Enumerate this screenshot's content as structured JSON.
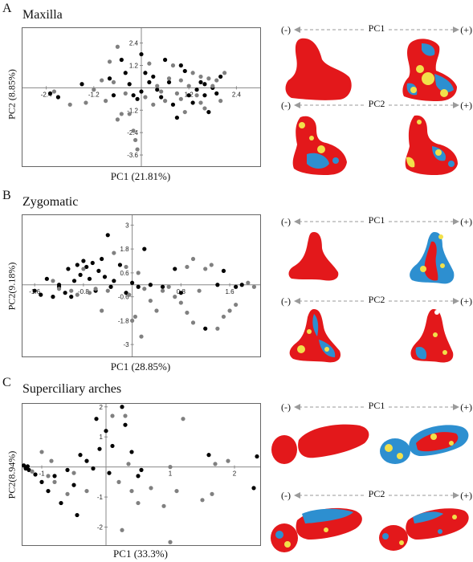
{
  "colors": {
    "black_points": "#000000",
    "gray_points": "#808080",
    "heat_red": "#e3181b",
    "heat_yellow": "#f2e04a",
    "heat_blue": "#2d8fd0",
    "arrow": "#9a9a9a"
  },
  "panels": [
    {
      "letter": "A",
      "title": "Maxilla",
      "arrows": [
        {
          "minus": "(-)",
          "label": "PC1",
          "plus": "(+)"
        },
        {
          "minus": "(-)",
          "label": "PC2",
          "plus": "(+)"
        }
      ]
    },
    {
      "letter": "B",
      "title": "Zygomatic",
      "arrows": [
        {
          "minus": "(-)",
          "label": "PC1",
          "plus": "(+)"
        },
        {
          "minus": "(-)",
          "label": "PC2",
          "plus": "(+)"
        }
      ]
    },
    {
      "letter": "C",
      "title": "Superciliary arches",
      "arrows": [
        {
          "minus": "(-)",
          "label": "PC1",
          "plus": "(+)"
        },
        {
          "minus": "(-)",
          "label": "PC2",
          "plus": "(+)"
        }
      ]
    }
  ],
  "chart_data": [
    {
      "type": "scatter",
      "title": "",
      "xlabel": "PC1 (21.81%)",
      "ylabel": "PC2 (8.85%)",
      "xlim": [
        -3.0,
        3.0
      ],
      "ylim": [
        -4.2,
        3.2
      ],
      "x_ticks": [
        {
          "v": -2.4,
          "t": "-2.4"
        },
        {
          "v": -1.2,
          "t": "-1.2"
        },
        {
          "v": 1.2,
          "t": "1.2"
        },
        {
          "v": 2.4,
          "t": "2.4"
        }
      ],
      "y_ticks": [
        {
          "v": 2.4,
          "t": "2.4"
        },
        {
          "v": 1.2,
          "t": "1.2"
        },
        {
          "v": -1.2,
          "t": "-1.2"
        },
        {
          "v": -2.4,
          "t": "-2.4"
        },
        {
          "v": -3.6,
          "t": "-3.6"
        }
      ],
      "series": [
        {
          "color": "#000000",
          "points": [
            [
              -2.3,
              -0.3
            ],
            [
              -2.1,
              -0.5
            ],
            [
              -1.5,
              0.2
            ],
            [
              -0.7,
              -0.4
            ],
            [
              -0.5,
              1.5
            ],
            [
              -0.4,
              0.8
            ],
            [
              -0.3,
              0.2
            ],
            [
              -0.2,
              -0.4
            ],
            [
              -0.1,
              -0.6
            ],
            [
              0.0,
              -0.2
            ],
            [
              0.1,
              0.8
            ],
            [
              0.2,
              0.3
            ],
            [
              0.3,
              0.6
            ],
            [
              0.4,
              -0.1
            ],
            [
              0.5,
              -0.5
            ],
            [
              0.6,
              1.5
            ],
            [
              0.7,
              0.3
            ],
            [
              0.8,
              -0.9
            ],
            [
              0.9,
              -1.6
            ],
            [
              1.0,
              1.2
            ],
            [
              1.1,
              0.9
            ],
            [
              1.3,
              -0.8
            ],
            [
              1.4,
              -0.1
            ],
            [
              1.5,
              0.3
            ],
            [
              1.6,
              -0.4
            ],
            [
              1.7,
              -1.3
            ],
            [
              1.8,
              0.0
            ],
            [
              1.9,
              -0.3
            ],
            [
              2.0,
              0.6
            ],
            [
              1.2,
              -0.4
            ],
            [
              0.0,
              1.8
            ],
            [
              -0.8,
              0.5
            ],
            [
              1.6,
              0.2
            ]
          ]
        },
        {
          "color": "#808080",
          "points": [
            [
              -2.2,
              -0.2
            ],
            [
              -1.8,
              -0.9
            ],
            [
              -1.4,
              -0.8
            ],
            [
              -1.2,
              -0.1
            ],
            [
              -1.0,
              0.4
            ],
            [
              -0.9,
              -0.7
            ],
            [
              -0.8,
              1.4
            ],
            [
              -0.7,
              0.3
            ],
            [
              -0.6,
              -1.7
            ],
            [
              -0.5,
              -1.4
            ],
            [
              -0.4,
              -0.3
            ],
            [
              -0.3,
              -1.4
            ],
            [
              -0.2,
              -2.3
            ],
            [
              -0.15,
              -2.8
            ],
            [
              -0.1,
              -3.3
            ],
            [
              0.1,
              -0.5
            ],
            [
              0.3,
              -0.9
            ],
            [
              0.4,
              0.1
            ],
            [
              0.5,
              -0.2
            ],
            [
              0.6,
              -0.7
            ],
            [
              0.7,
              0.5
            ],
            [
              0.8,
              1.2
            ],
            [
              0.9,
              -0.3
            ],
            [
              1.0,
              -0.6
            ],
            [
              1.1,
              -1.3
            ],
            [
              1.2,
              0.1
            ],
            [
              1.3,
              0.8
            ],
            [
              1.4,
              -0.4
            ],
            [
              1.5,
              -0.8
            ],
            [
              1.6,
              -1.1
            ],
            [
              1.7,
              0.5
            ],
            [
              1.8,
              0.1
            ],
            [
              1.9,
              0.4
            ],
            [
              2.0,
              -0.7
            ],
            [
              2.1,
              0.8
            ],
            [
              -0.6,
              2.2
            ],
            [
              0.2,
              1.3
            ],
            [
              1.0,
              0.4
            ],
            [
              1.5,
              0.6
            ]
          ]
        }
      ]
    },
    {
      "type": "scatter",
      "title": "",
      "xlabel": "PC1 (28.85%)",
      "ylabel": "PC2(9.18%)",
      "xlim": [
        -1.8,
        2.1
      ],
      "ylim": [
        -3.6,
        3.5
      ],
      "x_ticks": [
        {
          "v": -1.6,
          "t": "-1.6"
        },
        {
          "v": -0.8,
          "t": "-0.8"
        },
        {
          "v": 0.8,
          "t": "0.8"
        },
        {
          "v": 1.6,
          "t": "1.6"
        }
      ],
      "y_ticks": [
        {
          "v": 3,
          "t": "3"
        },
        {
          "v": 1.8,
          "t": "1.8"
        },
        {
          "v": 0.6,
          "t": "0.6"
        },
        {
          "v": -0.6,
          "t": "-0.6"
        },
        {
          "v": -1.8,
          "t": "-1.8"
        },
        {
          "v": -3,
          "t": "-3"
        }
      ],
      "series": [
        {
          "color": "#000000",
          "points": [
            [
              -1.6,
              -0.3
            ],
            [
              -1.5,
              -0.5
            ],
            [
              -1.4,
              0.3
            ],
            [
              -1.3,
              -0.6
            ],
            [
              -1.2,
              -0.1
            ],
            [
              -1.1,
              -0.4
            ],
            [
              -1.05,
              0.8
            ],
            [
              -1.0,
              -0.6
            ],
            [
              -0.95,
              0.2
            ],
            [
              -0.9,
              1.0
            ],
            [
              -0.85,
              0.5
            ],
            [
              -0.8,
              1.2
            ],
            [
              -0.75,
              0.9
            ],
            [
              -0.7,
              0.3
            ],
            [
              -0.65,
              1.1
            ],
            [
              -0.6,
              -0.3
            ],
            [
              -0.55,
              0.7
            ],
            [
              -0.5,
              1.3
            ],
            [
              -0.45,
              0.4
            ],
            [
              -0.4,
              2.5
            ],
            [
              -0.35,
              -0.1
            ],
            [
              -0.3,
              0.2
            ],
            [
              -0.2,
              1.0
            ],
            [
              -0.1,
              -0.4
            ],
            [
              0.0,
              0.1
            ],
            [
              0.1,
              -0.1
            ],
            [
              0.2,
              1.8
            ],
            [
              0.3,
              0.0
            ],
            [
              0.5,
              -0.1
            ],
            [
              0.7,
              0.8
            ],
            [
              0.8,
              -0.4
            ],
            [
              1.2,
              -2.2
            ],
            [
              1.4,
              0.0
            ],
            [
              1.5,
              0.7
            ],
            [
              1.7,
              -0.1
            ],
            [
              1.8,
              0.0
            ],
            [
              -1.2,
              0.0
            ]
          ]
        },
        {
          "color": "#808080",
          "points": [
            [
              -1.3,
              0.2
            ],
            [
              -1.2,
              -0.2
            ],
            [
              -1.0,
              -0.3
            ],
            [
              -0.9,
              -0.5
            ],
            [
              -0.8,
              0.8
            ],
            [
              -0.7,
              -0.4
            ],
            [
              -0.5,
              -1.3
            ],
            [
              -0.4,
              -0.3
            ],
            [
              -0.3,
              1.6
            ],
            [
              -0.1,
              0.9
            ],
            [
              -0.05,
              -0.5
            ],
            [
              0.0,
              -1.8
            ],
            [
              0.05,
              -1.6
            ],
            [
              0.1,
              0.6
            ],
            [
              0.2,
              -0.2
            ],
            [
              0.3,
              -0.8
            ],
            [
              0.4,
              -1.3
            ],
            [
              0.5,
              -0.3
            ],
            [
              0.6,
              -0.1
            ],
            [
              0.7,
              -0.6
            ],
            [
              0.8,
              -0.9
            ],
            [
              0.9,
              -1.4
            ],
            [
              1.0,
              1.3
            ],
            [
              1.1,
              -0.3
            ],
            [
              1.2,
              0.8
            ],
            [
              1.3,
              1.0
            ],
            [
              1.4,
              -2.2
            ],
            [
              1.5,
              -1.6
            ],
            [
              1.6,
              -1.3
            ],
            [
              1.7,
              -1.0
            ],
            [
              1.9,
              0.1
            ],
            [
              2.0,
              -0.1
            ],
            [
              0.15,
              -2.6
            ],
            [
              1.0,
              -1.9
            ],
            [
              0.9,
              0.9
            ],
            [
              -0.6,
              -0.2
            ]
          ]
        }
      ]
    },
    {
      "type": "scatter",
      "title": "",
      "xlabel": "PC1 (33.3%)",
      "ylabel": "PC2(8.94%)",
      "xlim": [
        -1.3,
        2.4
      ],
      "ylim": [
        -2.6,
        2.1
      ],
      "x_ticks": [
        {
          "v": -1,
          "t": "-1"
        },
        {
          "v": 1,
          "t": "1"
        },
        {
          "v": 2,
          "t": "2"
        }
      ],
      "y_ticks": [
        {
          "v": 2,
          "t": "2"
        },
        {
          "v": 1,
          "t": "1"
        },
        {
          "v": -1,
          "t": "-1"
        },
        {
          "v": -2,
          "t": "-2"
        }
      ],
      "series": [
        {
          "color": "#000000",
          "points": [
            [
              -1.28,
              0.05
            ],
            [
              -1.25,
              -0.05
            ],
            [
              -1.22,
              0.02
            ],
            [
              -1.2,
              -0.1
            ],
            [
              -1.1,
              -0.25
            ],
            [
              -1.0,
              -0.5
            ],
            [
              -0.9,
              -0.8
            ],
            [
              -0.8,
              -0.3
            ],
            [
              -0.7,
              -1.2
            ],
            [
              -0.6,
              -0.1
            ],
            [
              -0.5,
              -0.6
            ],
            [
              -0.45,
              -1.6
            ],
            [
              -0.4,
              0.4
            ],
            [
              -0.3,
              0.2
            ],
            [
              -0.2,
              -0.05
            ],
            [
              -0.15,
              1.6
            ],
            [
              -0.1,
              0.6
            ],
            [
              0.0,
              1.2
            ],
            [
              0.05,
              -0.2
            ],
            [
              0.1,
              0.7
            ],
            [
              0.25,
              2.0
            ],
            [
              0.3,
              1.4
            ],
            [
              0.4,
              0.5
            ],
            [
              0.5,
              -0.3
            ],
            [
              1.6,
              0.4
            ],
            [
              2.3,
              -0.7
            ],
            [
              2.35,
              0.35
            ],
            [
              0.55,
              -0.1
            ]
          ]
        },
        {
          "color": "#808080",
          "points": [
            [
              -1.15,
              -0.15
            ],
            [
              -1.0,
              0.5
            ],
            [
              -0.9,
              -0.3
            ],
            [
              -0.85,
              0.2
            ],
            [
              -0.8,
              -0.5
            ],
            [
              -0.6,
              -0.9
            ],
            [
              -0.5,
              -0.2
            ],
            [
              -0.3,
              -0.8
            ],
            [
              0.1,
              1.7
            ],
            [
              0.2,
              -0.5
            ],
            [
              0.3,
              1.7
            ],
            [
              0.35,
              0.1
            ],
            [
              0.4,
              -0.8
            ],
            [
              0.5,
              -1.2
            ],
            [
              0.7,
              -0.7
            ],
            [
              0.9,
              -1.3
            ],
            [
              1.0,
              0.0
            ],
            [
              1.1,
              -0.8
            ],
            [
              1.2,
              1.6
            ],
            [
              1.5,
              -1.1
            ],
            [
              1.7,
              0.1
            ],
            [
              1.9,
              0.2
            ],
            [
              0.25,
              -2.1
            ],
            [
              1.0,
              -2.5
            ],
            [
              1.65,
              -0.9
            ]
          ]
        }
      ]
    }
  ]
}
